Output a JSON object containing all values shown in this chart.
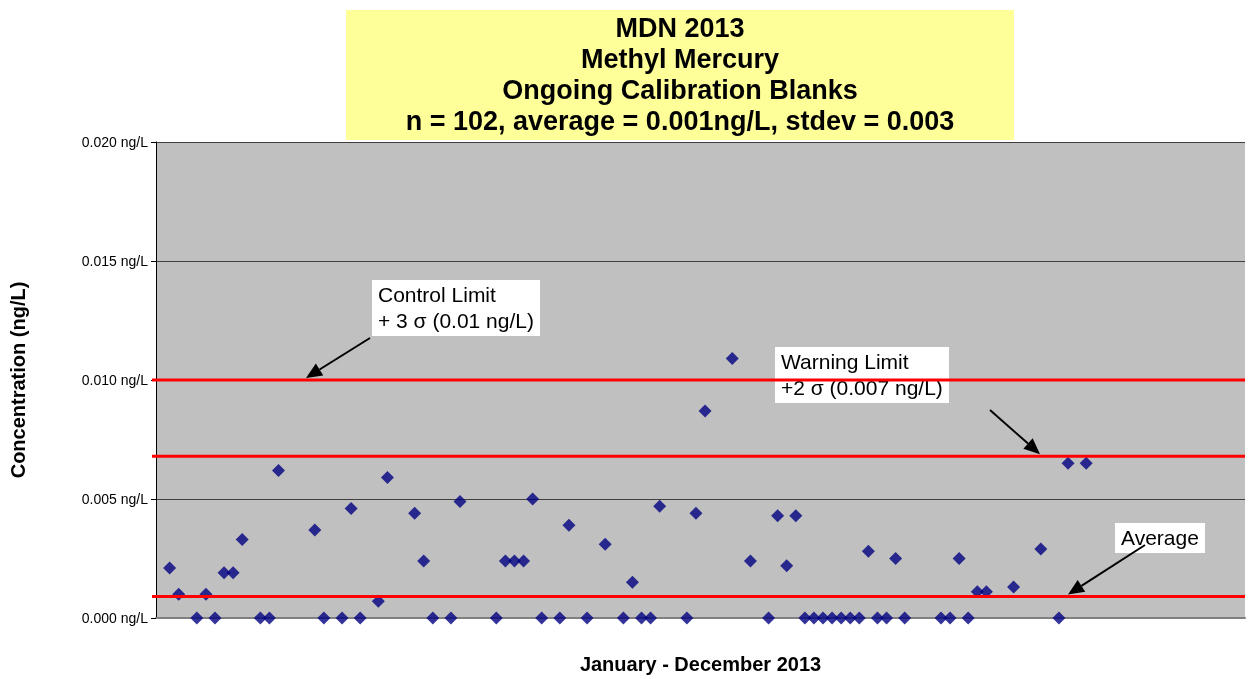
{
  "chart_data": {
    "type": "scatter",
    "title": "MDN 2013\nMethyl Mercury\nOngoing Calibration Blanks",
    "subtitle": "n = 102, average = 0.001ng/L, stdev = 0.003",
    "xlabel": "January - December 2013",
    "ylabel": "Concentration (ng/L)",
    "categories": [
      null,
      null,
      null,
      null,
      null,
      null,
      null,
      null,
      null,
      null,
      null,
      null,
      null,
      null,
      null,
      null,
      null,
      null,
      null,
      null,
      null,
      null,
      null,
      null,
      null,
      null,
      null,
      null,
      null,
      null,
      null,
      null,
      null,
      null,
      null,
      null,
      null,
      null,
      null,
      null,
      null,
      null,
      null,
      null,
      null,
      null,
      null,
      null,
      null,
      null,
      null,
      null,
      null,
      null,
      null,
      null,
      null,
      null,
      null,
      null,
      null,
      null,
      null,
      null,
      null,
      null,
      null,
      null,
      null,
      null,
      null,
      null,
      null,
      null,
      null,
      null,
      null,
      null,
      null,
      null,
      null,
      null,
      null,
      null,
      null,
      null,
      null,
      null,
      null,
      null,
      null,
      null,
      null,
      null,
      null,
      null,
      null,
      null,
      null,
      null,
      null,
      null,
      null,
      null,
      null,
      null,
      null,
      null,
      null,
      null,
      null,
      null,
      null,
      null,
      null,
      null,
      null,
      null,
      null,
      null
    ],
    "values": [
      null,
      0.0021,
      0.001,
      null,
      0,
      0.001,
      0,
      0.0019,
      0.0019,
      0.0033,
      null,
      0,
      0,
      0.0062,
      null,
      null,
      null,
      0.0037,
      0,
      null,
      0,
      0.0046,
      0,
      null,
      0.0007,
      0.0059,
      null,
      null,
      0.0044,
      0.0024,
      0,
      null,
      0,
      0.0049,
      null,
      null,
      null,
      0,
      0.0024,
      0.0024,
      0.0024,
      0.005,
      0,
      null,
      0,
      0.0039,
      null,
      0,
      null,
      0.0031,
      null,
      0,
      0.0015,
      0,
      0,
      0.0047,
      null,
      null,
      0,
      0.0044,
      0.0087,
      null,
      null,
      0.0109,
      null,
      0.0024,
      null,
      0,
      0.0043,
      0.0022,
      0.0043,
      0,
      0,
      0,
      0,
      0,
      0,
      0,
      0.0028,
      0,
      0,
      0.0025,
      0,
      null,
      null,
      null,
      0,
      0,
      0.0025,
      0,
      0.0011,
      0.0011,
      null,
      null,
      0.0013,
      null,
      null,
      0.0029,
      null,
      0,
      0.0065,
      null,
      0.0065,
      null,
      null,
      null,
      null,
      null,
      null,
      null,
      null,
      null,
      null,
      null,
      null,
      null,
      null,
      null,
      null,
      null
    ],
    "color": "#000080",
    "marker": "diamond",
    "ylim": [
      0,
      0.02
    ],
    "yticks": [
      {
        "value": 0,
        "label": "0.000 ng/L"
      },
      {
        "value": 0.005,
        "label": "0.005 ng/L"
      },
      {
        "value": 0.01,
        "label": "0.010 ng/L"
      },
      {
        "value": 0.015,
        "label": "0.015 ng/L"
      },
      {
        "value": 0.02,
        "label": "0.020 ng/L"
      }
    ],
    "grid": "y",
    "tick_labels": "y",
    "ref_lines": [
      {
        "axis": "y",
        "value": 0.01,
        "label": "Control Limit\n+ 3 σ (0.01 ng/L)",
        "color": "#ff0000"
      },
      {
        "axis": "y",
        "value": 0.0068,
        "label": "Warning Limit\n+2 σ (0.007 ng/L)",
        "color": "#ff0000"
      },
      {
        "axis": "y",
        "value": 0.0009,
        "label": "Average",
        "color": "#ff0000"
      }
    ]
  }
}
